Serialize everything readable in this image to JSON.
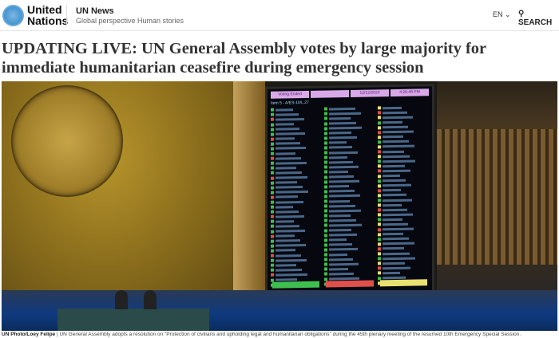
{
  "header": {
    "logo_text_line1": "United",
    "logo_text_line2": "Nations",
    "site_title": "UN News",
    "tagline": "Global perspective Human stories",
    "language": "EN",
    "search_label": "SEARCH"
  },
  "article": {
    "headline": "UPDATING LIVE: UN General Assembly votes by large majority for immediate humanitarian ceasefire during emergency session"
  },
  "photo": {
    "board_header": [
      "Voting Ended",
      "",
      "12/12/2023",
      "4:26:48 PM"
    ],
    "board_item": "Item 5 - A/ES-10/L.27",
    "vote_colors": {
      "yes": "#3fbf4f",
      "no": "#e0504a",
      "abstain": "#e8e070"
    }
  },
  "caption": {
    "credit": "UN Photo/Loey Felipe",
    "text": "UN General Assembly adopts a resolution on \"Protection of civilians and upholding legal and humanitarian obligations\" during the 45th plenary meeting of the resumed 10th Emergency Special Session."
  }
}
